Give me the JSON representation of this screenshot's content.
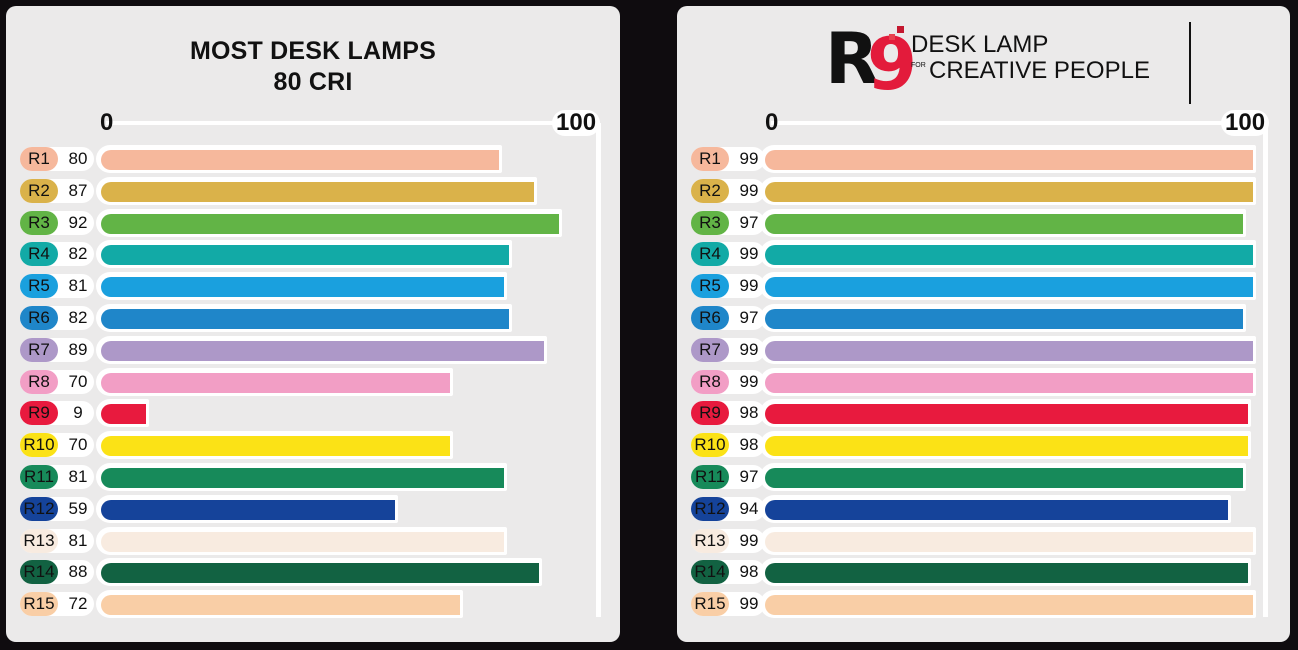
{
  "left_panel": {
    "title_line1": "MOST DESK LAMPS",
    "title_line2": "80 CRI",
    "axis": {
      "min_label": "0",
      "max_label": "100"
    }
  },
  "right_panel": {
    "logo": {
      "mark_r": "R",
      "mark_9": "9",
      "line1": "DESK LAMP",
      "for": "FOR",
      "line2": "CREATIVE PEOPLE"
    },
    "axis": {
      "min_label": "0",
      "max_label": "100"
    }
  },
  "colors": {
    "R1": "#f6b89c",
    "R2": "#dab24a",
    "R3": "#62b446",
    "R4": "#12aaa6",
    "R5": "#1aa0de",
    "R6": "#1f86c9",
    "R7": "#ad98c8",
    "R8": "#f29ec5",
    "R9": "#e81a3e",
    "R10": "#fbe216",
    "R11": "#178a5a",
    "R12": "#15439a",
    "R13": "#f8ebe0",
    "R14": "#126242",
    "R15": "#f9cea6"
  },
  "chart_data": [
    {
      "type": "bar",
      "orientation": "horizontal",
      "title": "MOST DESK LAMPS 80 CRI",
      "categories": [
        "R1",
        "R2",
        "R3",
        "R4",
        "R5",
        "R6",
        "R7",
        "R8",
        "R9",
        "R10",
        "R11",
        "R12",
        "R13",
        "R14",
        "R15"
      ],
      "values": [
        80,
        87,
        92,
        82,
        81,
        82,
        89,
        70,
        9,
        70,
        81,
        59,
        81,
        88,
        72
      ],
      "xlim": [
        0,
        100
      ],
      "xticks": [
        "0",
        "100"
      ],
      "legend": "none"
    },
    {
      "type": "bar",
      "orientation": "horizontal",
      "title": "R9 DESK LAMP FOR CREATIVE PEOPLE",
      "categories": [
        "R1",
        "R2",
        "R3",
        "R4",
        "R5",
        "R6",
        "R7",
        "R8",
        "R9",
        "R10",
        "R11",
        "R12",
        "R13",
        "R14",
        "R15"
      ],
      "values": [
        99,
        99,
        97,
        99,
        99,
        97,
        99,
        99,
        98,
        98,
        97,
        94,
        99,
        98,
        99
      ],
      "xlim": [
        0,
        100
      ],
      "xticks": [
        "0",
        "100"
      ],
      "legend": "none"
    }
  ]
}
